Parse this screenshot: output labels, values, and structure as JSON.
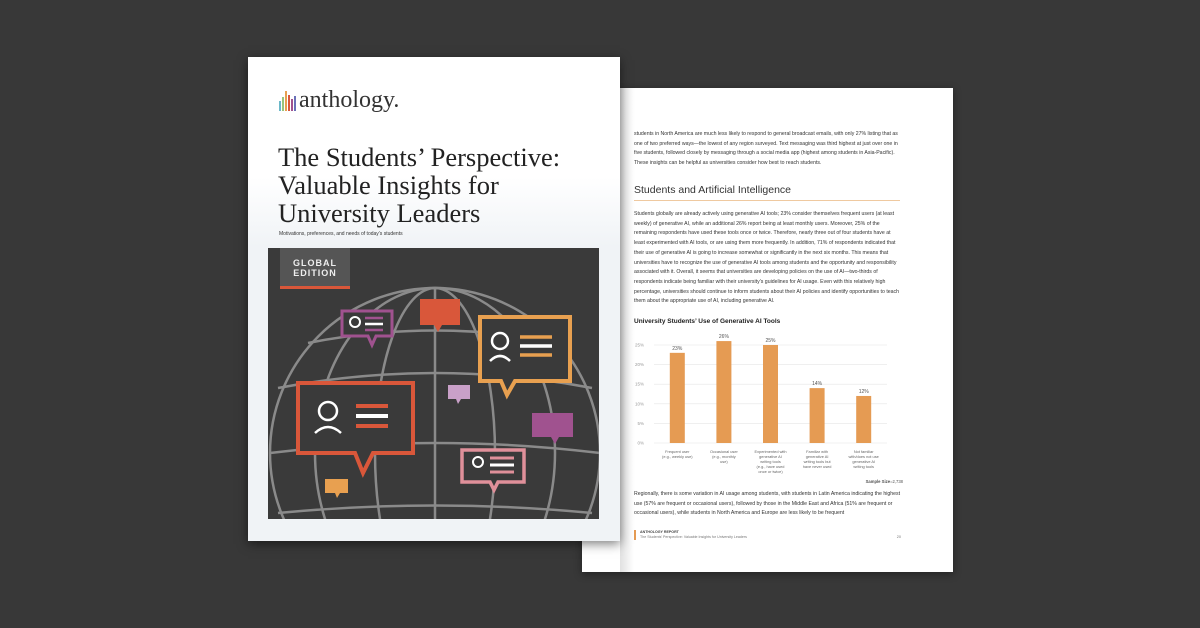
{
  "cover": {
    "logo_text": "anthology.",
    "title": "The Students’ Perspective:\nValuable Insights for\nUniversity Leaders",
    "subtitle": "Motivations, preferences, and needs of today’s students",
    "badge": "GLOBAL EDITION",
    "colors": {
      "red": "#d9573a",
      "orange": "#e8a050",
      "purple": "#a0528f",
      "pink": "#e0909a",
      "lavender": "#c9a0c8",
      "dark": "#3a3a3a"
    }
  },
  "page": {
    "intro": "students in North America are much less likely to respond to general broadcast emails, with only 27% listing that as one of two preferred ways—the lowest of any region surveyed. Text messaging was third highest at just over one in five students, followed closely by messaging through a social media app (highest among students in Asia-Pacific). These insights can be helpful as universities consider how best to reach students.",
    "heading": "Students and Artificial Intelligence",
    "body": "Students globally are already actively using generative AI tools; 23% consider themselves frequent users (at least weekly) of generative AI, while an additional 26% report being at least monthly users. Moreover, 25% of the remaining respondents have used these tools once or twice. Therefore, nearly three out of four students have at least experimented with AI tools, or are using them more frequently. In addition, 71% of respondents indicated that their use of generative AI is going to increase somewhat or significantly in the next six months. This means that universities have to recognize the use of generative AI tools among students and the opportunity and responsibility associated with it. Overall, it seems that universities are developing policies on the use of AI—two-thirds of respondents indicate being familiar with their university’s guidelines for AI usage. Even with this relatively high percentage, universities should continue to inform students about their AI policies and identify opportunities to teach them about the appropriate use of AI, including generative AI.",
    "sample_label": "Sample Size",
    "sample_value": "=2,738",
    "after": "Regionally, there is some variation in AI usage among students, with students in Latin America indicating the highest use (57% are frequent or occasional users), followed by those in the Middle East and Africa (51% are frequent or occasional users), while students in North America and Europe are less likely to be frequent",
    "footer_report": "ANTHOLOGY REPORT",
    "footer_title": "The Students’ Perspective: Valuable Insights for University Leaders",
    "page_number": "20"
  },
  "chart_data": {
    "type": "bar",
    "title": "University Students’ Use of Generative AI Tools",
    "categories": [
      "Frequent user (e.g., weekly use)",
      "Occasional user (e.g., monthly use)",
      "Experimented with generative AI writing tools (e.g., have used once or twice)",
      "Familiar with generative AI writing tools but have never used",
      "Not familiar with/does not use generative AI writing tools"
    ],
    "values": [
      23,
      26,
      25,
      14,
      12
    ],
    "data_labels": [
      "23%",
      "26%",
      "25%",
      "14%",
      "12%"
    ],
    "yticks": [
      "0%",
      "5%",
      "10%",
      "15%",
      "20%",
      "25%"
    ],
    "ylim": [
      0,
      25
    ],
    "grid": true,
    "color": "#e59b53"
  }
}
